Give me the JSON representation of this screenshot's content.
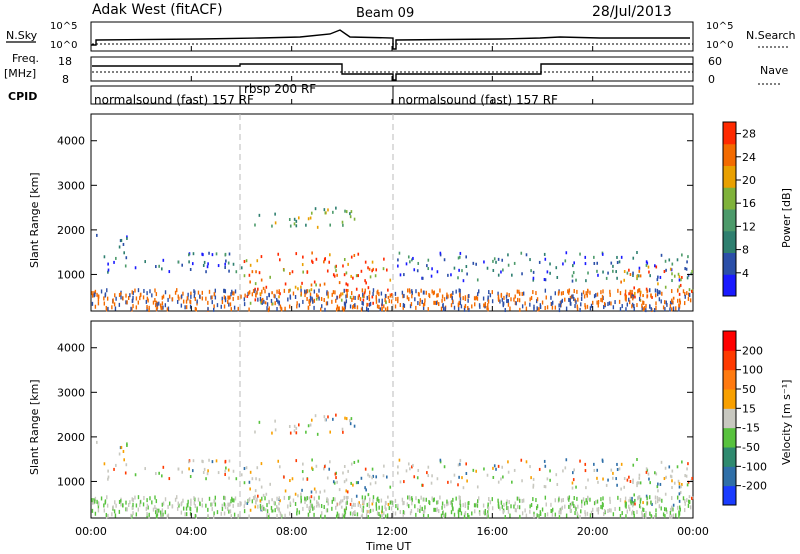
{
  "header": {
    "title": "Adak West (fitACF)",
    "beam": "Beam 09",
    "date": "28/Jul/2013"
  },
  "strips": {
    "nsky_label": "N.Sky",
    "nsearch_label": "N.Search",
    "freq_label": "Freq.",
    "freq_unit": "[MHz]",
    "nave_label": "Nave",
    "cpid_label": "CPID",
    "nsky_ticks": [
      "10^5",
      "10^0"
    ],
    "nsearch_ticks": [
      "10^5",
      "10^0"
    ],
    "freq_ticks": [
      "18",
      "8"
    ],
    "nave_ticks": [
      "60",
      "0"
    ]
  },
  "cpid": {
    "segments": [
      {
        "label": "normalsound (fast) 157 RF",
        "start_hour": 0
      },
      {
        "label": "rbsp 200 RF",
        "start_hour": 6
      },
      {
        "label": "normalsound (fast) 157 RF",
        "start_hour": 12
      }
    ]
  },
  "chart_data": [
    {
      "type": "heatmap",
      "name": "power",
      "xlabel": "Time UT",
      "ylabel": "Slant Range [km]",
      "xlim": [
        0,
        24
      ],
      "ylim": [
        180,
        4600
      ],
      "x_ticks": [
        "00:00",
        "04:00",
        "08:00",
        "12:00",
        "16:00",
        "20:00",
        "00:00"
      ],
      "y_ticks": [
        1000,
        2000,
        3000,
        4000
      ],
      "colorbar": {
        "label": "Power [dB]",
        "ticks": [
          4,
          8,
          12,
          16,
          20,
          24,
          28
        ],
        "range": [
          0,
          30
        ],
        "colors": [
          "#1a1aff",
          "#2b4fa8",
          "#2e7f6f",
          "#4c9a6a",
          "#7fb23a",
          "#e9a000",
          "#f36b00",
          "#ff2a00"
        ]
      },
      "echo_regions": [
        {
          "t_start": 0.2,
          "t_end": 1.5,
          "r_start": 1600,
          "r_end": 1900,
          "level": "low"
        },
        {
          "t_start": 0.2,
          "t_end": 6.0,
          "r_start": 1050,
          "r_end": 1500,
          "level": "low"
        },
        {
          "t_start": 6.5,
          "t_end": 10.5,
          "r_start": 2050,
          "r_end": 2500,
          "level": "medium"
        },
        {
          "t_start": 6.0,
          "t_end": 12.0,
          "r_start": 300,
          "r_end": 1500,
          "level": "high"
        },
        {
          "t_start": 12.2,
          "t_end": 24.0,
          "r_start": 850,
          "r_end": 1500,
          "level": "low"
        },
        {
          "t_start": 21.0,
          "t_end": 24.0,
          "r_start": 350,
          "r_end": 1200,
          "level": "high"
        }
      ]
    },
    {
      "type": "heatmap",
      "name": "velocity",
      "xlabel": "Time UT",
      "ylabel": "Slant Range [km]",
      "xlim": [
        0,
        24
      ],
      "ylim": [
        180,
        4600
      ],
      "x_ticks": [
        "00:00",
        "04:00",
        "08:00",
        "12:00",
        "16:00",
        "20:00",
        "00:00"
      ],
      "y_ticks": [
        1000,
        2000,
        3000,
        4000
      ],
      "colorbar": {
        "label": "Velocity [m s⁻¹]",
        "ticks": [
          200,
          100,
          50,
          15,
          -15,
          -50,
          -100,
          -200
        ],
        "colors": [
          "#1a3cff",
          "#2f6fa8",
          "#2f8a6f",
          "#58c23e",
          "#c8c8c0",
          "#f8a000",
          "#ff7a10",
          "#ff3a00",
          "#ff0000"
        ]
      }
    }
  ],
  "colors": {
    "ground_scatter": "#c8c8c0",
    "divider": "#bbbbbb"
  }
}
